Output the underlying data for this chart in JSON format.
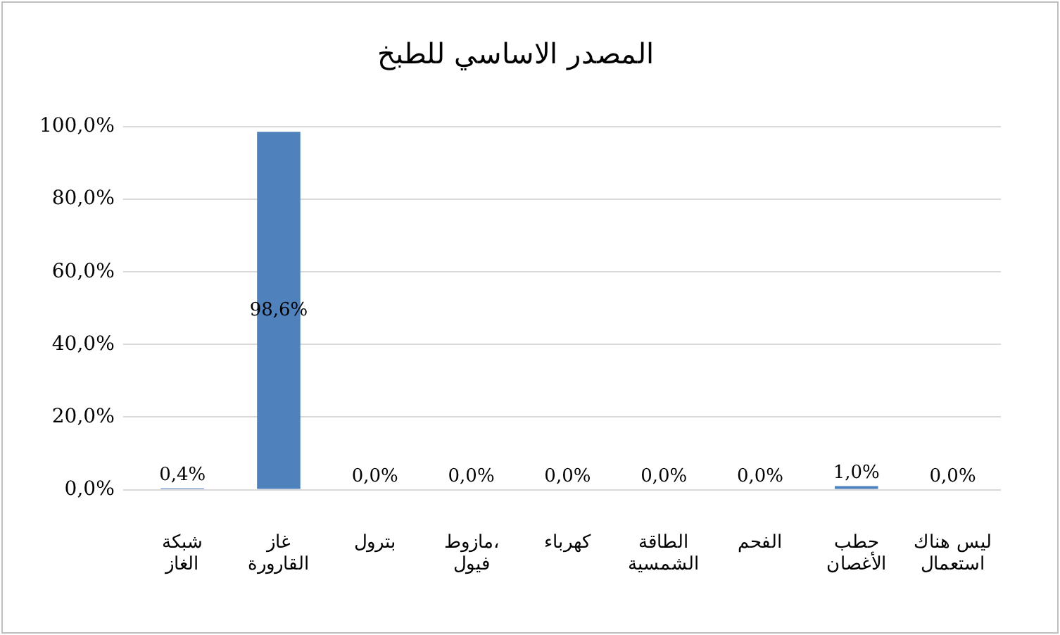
{
  "chart_data": {
    "type": "bar",
    "title": "المصدر الاساسي للطبخ",
    "categories": [
      "شبكة الغاز",
      "غاز القارورة",
      "بترول",
      "مازوط، فيول",
      "كهرباء",
      "الطاقة الشمسية",
      "الفحم",
      "حطب الأغصان",
      "ليس هناك استعمال"
    ],
    "values": [
      0.4,
      98.6,
      0,
      0,
      0,
      0,
      0,
      1.0,
      0
    ],
    "value_labels": [
      "0,4%",
      "98,6%",
      "0,0%",
      "0,0%",
      "0,0%",
      "0,0%",
      "0,0%",
      "1,0%",
      "0,0%"
    ],
    "color": "#4f81bd",
    "ylim": [
      0,
      100
    ],
    "yticks": [
      {
        "value": 0,
        "label": "0,0%"
      },
      {
        "value": 20,
        "label": "20,0%"
      },
      {
        "value": 40,
        "label": "40,0%"
      },
      {
        "value": 60,
        "label": "60,0%"
      },
      {
        "value": 80,
        "label": "80,0%"
      },
      {
        "value": 100,
        "label": "100,0%"
      }
    ],
    "grid": "y",
    "legend": false
  }
}
